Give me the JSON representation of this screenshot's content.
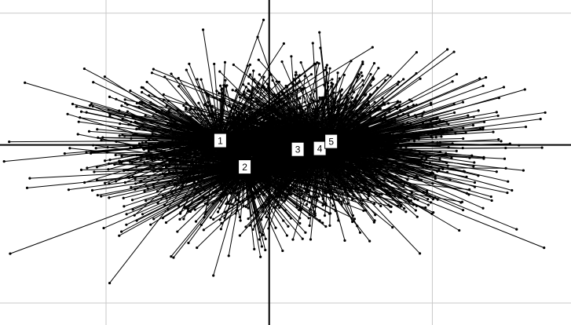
{
  "chart_data": {
    "type": "scatter",
    "grid": true,
    "xlim": [
      -3.3,
      3.7
    ],
    "ylim": [
      -2.05,
      1.65
    ],
    "x_gridlines": [
      -2,
      2
    ],
    "y_gridlines": [
      1.5,
      -1.8
    ],
    "axes_origin": [
      0,
      0
    ],
    "series": [
      {
        "labels": [
          "1",
          "2",
          "3",
          "4",
          "5"
        ],
        "centroids": [
          {
            "label": "1",
            "x": -0.6,
            "y": 0.05
          },
          {
            "label": "2",
            "x": -0.3,
            "y": -0.25
          },
          {
            "label": "3",
            "x": 0.35,
            "y": -0.05
          },
          {
            "label": "4",
            "x": 0.62,
            "y": -0.04
          },
          {
            "label": "5",
            "x": 0.76,
            "y": 0.04
          }
        ],
        "spread": {
          "sx": 1.05,
          "sy": 0.45,
          "points_per_group": 520
        }
      }
    ],
    "colors": {
      "points": "#000000",
      "axes": "#000000",
      "grid": "#c8c8c8"
    }
  }
}
